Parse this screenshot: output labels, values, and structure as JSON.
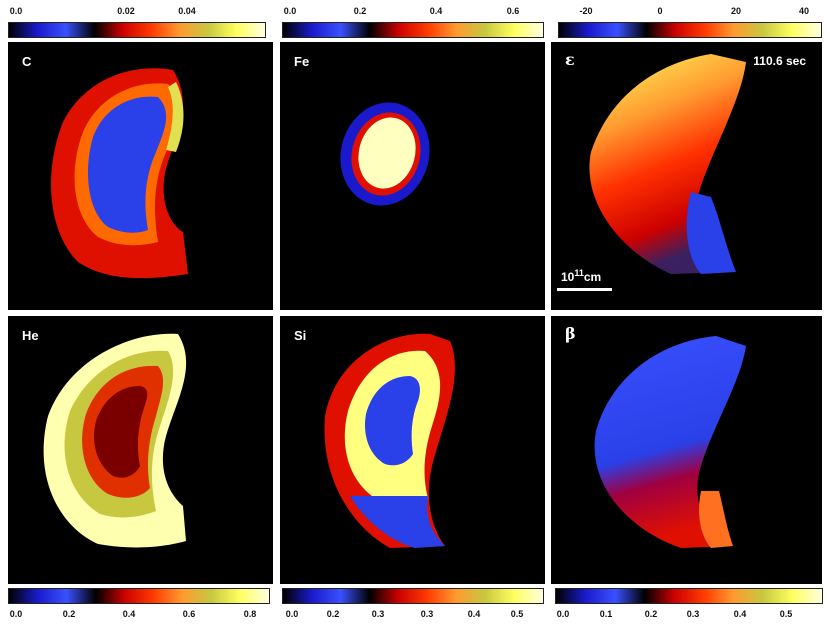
{
  "colors": {
    "stops": [
      "#000000",
      "#1a1acc",
      "#3a50ff",
      "#000000",
      "#cc0000",
      "#ff3a00",
      "#ff9a30",
      "#c8c840",
      "#ffff60",
      "#ffffe0"
    ],
    "panel_bg": "#000000"
  },
  "colorbars_top": [
    {
      "ticks": [
        "0.0",
        "0.02",
        "0.04"
      ]
    },
    {
      "ticks": [
        "0.0",
        "0.2",
        "0.4",
        "0.6"
      ]
    },
    {
      "ticks": [
        "-20",
        "0",
        "20",
        "40"
      ]
    }
  ],
  "colorbars_bottom": [
    {
      "ticks": [
        "0.0",
        "0.2",
        "0.4",
        "0.6",
        "0.8"
      ]
    },
    {
      "ticks": [
        "0.0",
        "0.2",
        "0.3",
        "0.3",
        "0.4",
        "0.5"
      ]
    },
    {
      "ticks": [
        "0.0",
        "0.1",
        "0.2",
        "0.3",
        "0.4",
        "0.5"
      ]
    }
  ],
  "panels": {
    "carbon": {
      "label": "C"
    },
    "iron": {
      "label": "Fe"
    },
    "epsilon": {
      "label": "ε",
      "time": "110.6 sec",
      "scale_base": "10",
      "scale_exp": "11",
      "scale_unit": "cm"
    },
    "helium": {
      "label": "He"
    },
    "silicon": {
      "label": "Si"
    },
    "beta": {
      "label": "β"
    }
  }
}
